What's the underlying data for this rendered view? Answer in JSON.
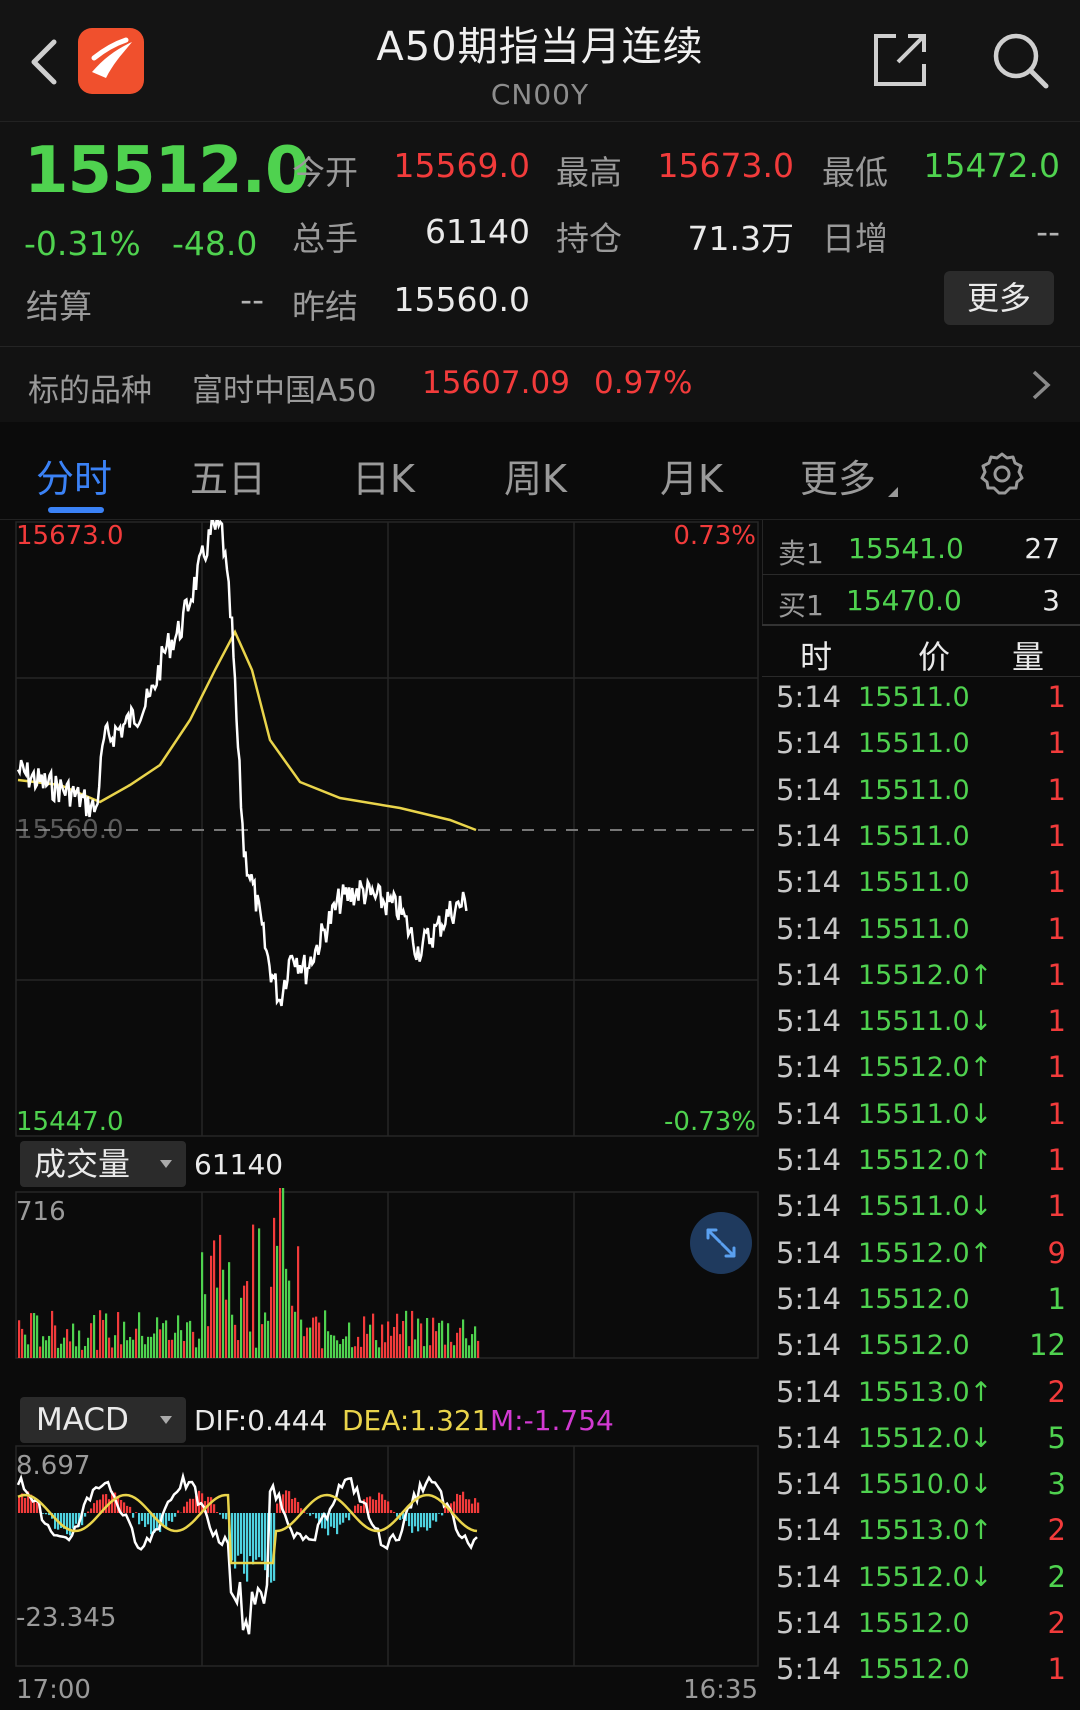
{
  "header": {
    "title": "A50期指当月连续",
    "code": "CN00Y"
  },
  "quote": {
    "last": "15512.0",
    "change_pct": "-0.31%",
    "change": "-48.0",
    "open_label": "今开",
    "open": "15569.0",
    "high_label": "最高",
    "high": "15673.0",
    "low_label": "最低",
    "low": "15472.0",
    "volume_label": "总手",
    "volume": "61140",
    "oi_label": "持仓",
    "oi": "71.3万",
    "daily_inc_label": "日增",
    "daily_inc": "--",
    "settle_label": "结算",
    "settle": "--",
    "prev_settle_label": "昨结",
    "prev_settle": "15560.0",
    "more_label": "更多"
  },
  "underlying": {
    "label": "标的品种",
    "name": "富时中国A50",
    "price": "15607.09",
    "pct": "0.97%"
  },
  "tabs": [
    "分时",
    "五日",
    "日K",
    "周K",
    "月K",
    "更多"
  ],
  "active_tab": 0,
  "chart": {
    "price_high": "15673.0",
    "price_low": "15447.0",
    "pct_high": "0.73%",
    "pct_low": "-0.73%",
    "ref_price": "15560.0",
    "volume_indicator": "成交量",
    "volume_total": "61140",
    "volume_max": "716",
    "macd_indicator": "MACD",
    "dif": "DIF:0.444",
    "dea": "DEA:1.321",
    "m": "M:-1.754",
    "macd_max": "8.697",
    "macd_min": "-23.345",
    "time_start": "17:00",
    "time_end": "16:35",
    "colors": {
      "up": "#f23b3b",
      "down": "#4fd24f",
      "avg_line": "#e9d44b",
      "price_line": "#ffffff"
    }
  },
  "orderbook": {
    "ask_label": "卖1",
    "ask_price": "15541.0",
    "ask_qty": "27",
    "bid_label": "买1",
    "bid_price": "15470.0",
    "bid_qty": "3",
    "headers": [
      "时",
      "价",
      "量"
    ],
    "trades": [
      {
        "time": "5:14",
        "price": "15511.0",
        "qty": "1",
        "color": "red"
      },
      {
        "time": "5:14",
        "price": "15511.0",
        "qty": "1",
        "color": "red"
      },
      {
        "time": "5:14",
        "price": "15511.0",
        "qty": "1",
        "color": "red"
      },
      {
        "time": "5:14",
        "price": "15511.0",
        "qty": "1",
        "color": "red"
      },
      {
        "time": "5:14",
        "price": "15511.0",
        "qty": "1",
        "color": "red"
      },
      {
        "time": "5:14",
        "price": "15511.0",
        "qty": "1",
        "color": "red"
      },
      {
        "time": "5:14",
        "price": "15512.0↑",
        "qty": "1",
        "color": "red"
      },
      {
        "time": "5:14",
        "price": "15511.0↓",
        "qty": "1",
        "color": "red"
      },
      {
        "time": "5:14",
        "price": "15512.0↑",
        "qty": "1",
        "color": "red"
      },
      {
        "time": "5:14",
        "price": "15511.0↓",
        "qty": "1",
        "color": "red"
      },
      {
        "time": "5:14",
        "price": "15512.0↑",
        "qty": "1",
        "color": "red"
      },
      {
        "time": "5:14",
        "price": "15511.0↓",
        "qty": "1",
        "color": "red"
      },
      {
        "time": "5:14",
        "price": "15512.0↑",
        "qty": "9",
        "color": "red"
      },
      {
        "time": "5:14",
        "price": "15512.0",
        "qty": "1",
        "color": "green"
      },
      {
        "time": "5:14",
        "price": "15512.0",
        "qty": "12",
        "color": "green"
      },
      {
        "time": "5:14",
        "price": "15513.0↑",
        "qty": "2",
        "color": "red"
      },
      {
        "time": "5:14",
        "price": "15512.0↓",
        "qty": "5",
        "color": "green"
      },
      {
        "time": "5:14",
        "price": "15510.0↓",
        "qty": "3",
        "color": "green"
      },
      {
        "time": "5:14",
        "price": "15513.0↑",
        "qty": "2",
        "color": "red"
      },
      {
        "time": "5:14",
        "price": "15512.0↓",
        "qty": "2",
        "color": "green"
      },
      {
        "time": "5:14",
        "price": "15512.0",
        "qty": "2",
        "color": "red"
      },
      {
        "time": "5:14",
        "price": "15512.0",
        "qty": "1",
        "color": "red"
      }
    ]
  }
}
